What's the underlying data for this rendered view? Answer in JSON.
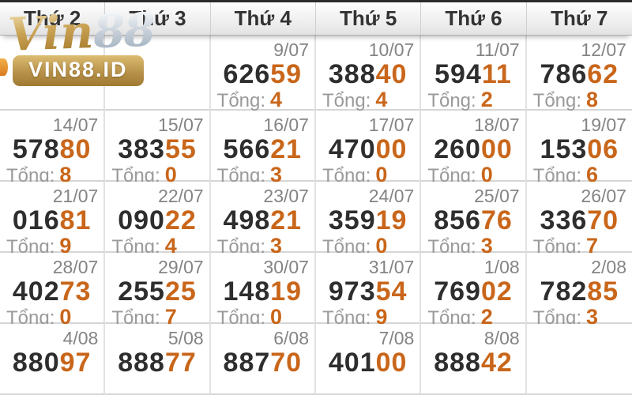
{
  "header": {
    "days": [
      "Thứ 2",
      "Thứ 3",
      "Thứ 4",
      "Thứ 5",
      "Thứ 6",
      "Thứ 7"
    ]
  },
  "watermark": {
    "vin": "Vin",
    "eight_eight": "88",
    "badge": "VIN88.ID"
  },
  "labels": {
    "tong": "Tổng:"
  },
  "colors": {
    "accent_orange": "#c9661a",
    "number_dark": "#2e2e2e",
    "date_gray": "#848484",
    "gold": "#b8924a"
  },
  "rows": [
    [
      null,
      null,
      {
        "date": "9/07",
        "main": "626",
        "tail": "59",
        "tong": "4"
      },
      {
        "date": "10/07",
        "main": "388",
        "tail": "40",
        "tong": "4"
      },
      {
        "date": "11/07",
        "main": "594",
        "tail": "11",
        "tong": "2"
      },
      {
        "date": "12/07",
        "main": "786",
        "tail": "62",
        "tong": "8"
      }
    ],
    [
      {
        "date": "14/07",
        "main": "578",
        "tail": "80",
        "tong": "8"
      },
      {
        "date": "15/07",
        "main": "383",
        "tail": "55",
        "tong": "0"
      },
      {
        "date": "16/07",
        "main": "566",
        "tail": "21",
        "tong": "3"
      },
      {
        "date": "17/07",
        "main": "470",
        "tail": "00",
        "tong": "0"
      },
      {
        "date": "18/07",
        "main": "260",
        "tail": "00",
        "tong": "0"
      },
      {
        "date": "19/07",
        "main": "153",
        "tail": "06",
        "tong": "6"
      }
    ],
    [
      {
        "date": "21/07",
        "main": "016",
        "tail": "81",
        "tong": "9"
      },
      {
        "date": "22/07",
        "main": "090",
        "tail": "22",
        "tong": "4"
      },
      {
        "date": "23/07",
        "main": "498",
        "tail": "21",
        "tong": "3"
      },
      {
        "date": "24/07",
        "main": "359",
        "tail": "19",
        "tong": "0"
      },
      {
        "date": "25/07",
        "main": "856",
        "tail": "76",
        "tong": "3"
      },
      {
        "date": "26/07",
        "main": "336",
        "tail": "70",
        "tong": "7"
      }
    ],
    [
      {
        "date": "28/07",
        "main": "402",
        "tail": "73",
        "tong": "0"
      },
      {
        "date": "29/07",
        "main": "255",
        "tail": "25",
        "tong": "7"
      },
      {
        "date": "30/07",
        "main": "148",
        "tail": "19",
        "tong": "0"
      },
      {
        "date": "31/07",
        "main": "973",
        "tail": "54",
        "tong": "9"
      },
      {
        "date": "1/08",
        "main": "769",
        "tail": "02",
        "tong": "2"
      },
      {
        "date": "2/08",
        "main": "782",
        "tail": "85",
        "tong": "3"
      }
    ],
    [
      {
        "date": "4/08",
        "main": "880",
        "tail": "97",
        "tong": null
      },
      {
        "date": "5/08",
        "main": "888",
        "tail": "77",
        "tong": null
      },
      {
        "date": "6/08",
        "main": "887",
        "tail": "70",
        "tong": null
      },
      {
        "date": "7/08",
        "main": "401",
        "tail": "00",
        "tong": null
      },
      {
        "date": "8/08",
        "main": "888",
        "tail": "42",
        "tong": null
      },
      null
    ]
  ]
}
